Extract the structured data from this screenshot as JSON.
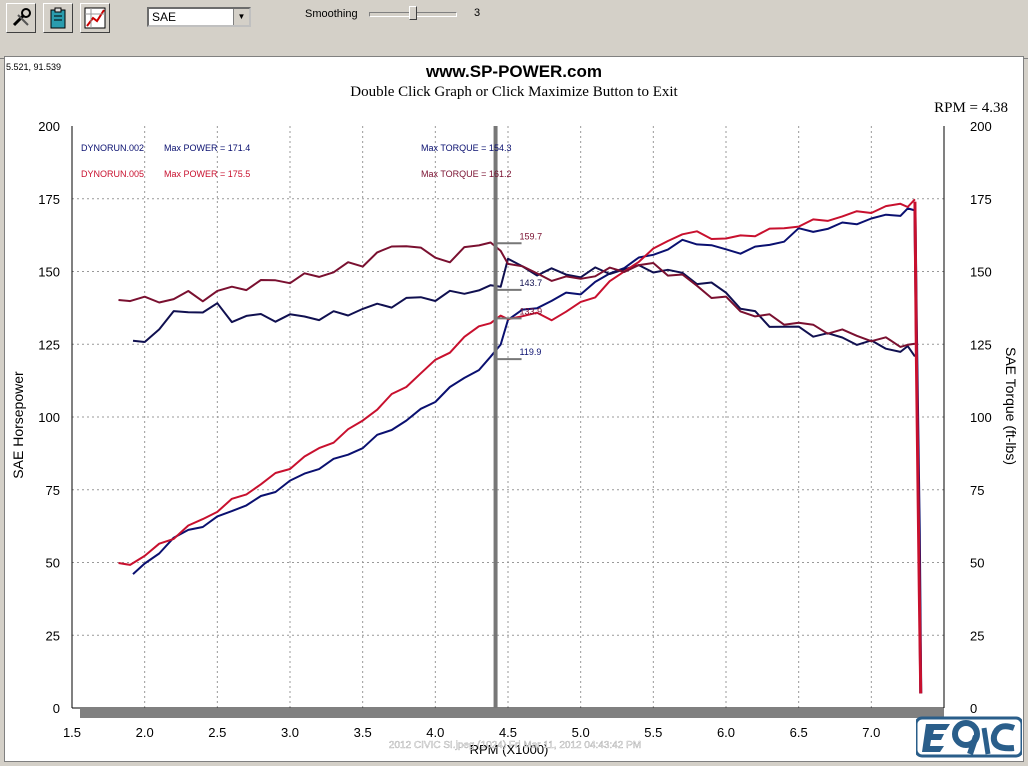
{
  "toolbar": {
    "tools": [
      {
        "name": "wrench-icon"
      },
      {
        "name": "clipboard-icon"
      },
      {
        "name": "graph-icon"
      }
    ],
    "correction_select": "SAE",
    "smoothing_label": "Smoothing",
    "smoothing_value": "3",
    "smoothing_level": 0.5
  },
  "coord_readout": "5.521, 91.539",
  "footer_caption": "2012 CIVIC SI.jpeg (1024) Fri Mar 11, 2012 04:43:42 PM",
  "colors": {
    "run1": "#0a1070",
    "run1_torque": "#101050",
    "run2": "#c8102e",
    "run2_torque": "#7a1030"
  },
  "chart_data": {
    "type": "line",
    "title": "www.SP-POWER.com",
    "subtitle": "Double Click Graph or Click Maximize Button to Exit",
    "rpm_readout": "RPM = 4.38",
    "xlabel": "RPM (X1000)",
    "ylabel": "SAE Horsepower",
    "y2label": "SAE Torque (ft-lbs)",
    "xlim": [
      1.5,
      7.5
    ],
    "ylim": [
      0,
      200
    ],
    "xticks": [
      "1.5",
      "2.0",
      "2.5",
      "3.0",
      "3.5",
      "4.0",
      "4.5",
      "5.0",
      "5.5",
      "6.0",
      "6.5",
      "7.0",
      "7.5"
    ],
    "yticks": [
      "0",
      "25",
      "50",
      "75",
      "100",
      "125",
      "150",
      "175",
      "200"
    ],
    "grid": true,
    "cursor_x": 4.38,
    "legend": [
      {
        "run": "DYNORUN.002",
        "power_text": "Max POWER = 171.4",
        "torque_text": "Max TORQUE = 154.3"
      },
      {
        "run": "DYNORUN.005",
        "power_text": "Max POWER = 175.5",
        "torque_text": "Max TORQUE = 161.2"
      }
    ],
    "cursor_labels": [
      {
        "text": "159.7",
        "value": 159.7
      },
      {
        "text": "143.7",
        "value": 143.7
      },
      {
        "text": "133.9",
        "value": 133.9
      },
      {
        "text": "119.9",
        "value": 119.9
      }
    ],
    "series": [
      {
        "name": "DYNORUN.002",
        "kind": "power",
        "x": [
          1.92,
          2.0,
          2.1,
          2.2,
          2.3,
          2.4,
          2.5,
          2.6,
          2.7,
          2.8,
          2.9,
          3.0,
          3.1,
          3.2,
          3.3,
          3.4,
          3.5,
          3.6,
          3.7,
          3.8,
          3.9,
          4.0,
          4.1,
          4.2,
          4.3,
          4.38,
          4.45,
          4.5,
          4.6,
          4.7,
          4.8,
          4.9,
          5.0,
          5.1,
          5.2,
          5.3,
          5.4,
          5.5,
          5.6,
          5.7,
          5.8,
          5.9,
          6.0,
          6.1,
          6.2,
          6.3,
          6.4,
          6.5,
          6.6,
          6.7,
          6.8,
          6.9,
          7.0,
          7.1,
          7.2,
          7.25,
          7.3
        ],
        "y": [
          46,
          49,
          54,
          58,
          61,
          63,
          65,
          68,
          70,
          72,
          75,
          78,
          80,
          83,
          85,
          87,
          90,
          93,
          96,
          99,
          102,
          106,
          110,
          113,
          117,
          120,
          125,
          134,
          136,
          138,
          140,
          142,
          143,
          146,
          149,
          152,
          154,
          156,
          158,
          160,
          160,
          159,
          157,
          157,
          158,
          159,
          161,
          164,
          164,
          165,
          166,
          167,
          168,
          169,
          170,
          171,
          171
        ]
      },
      {
        "name": "DYNORUN.002",
        "kind": "torque",
        "x": [
          1.92,
          2.0,
          2.1,
          2.2,
          2.3,
          2.4,
          2.5,
          2.6,
          2.7,
          2.8,
          2.9,
          3.0,
          3.1,
          3.2,
          3.3,
          3.4,
          3.5,
          3.6,
          3.7,
          3.8,
          3.9,
          4.0,
          4.1,
          4.2,
          4.3,
          4.38,
          4.45,
          4.5,
          4.6,
          4.7,
          4.8,
          4.9,
          5.0,
          5.1,
          5.2,
          5.3,
          5.4,
          5.5,
          5.6,
          5.7,
          5.8,
          5.9,
          6.0,
          6.1,
          6.2,
          6.3,
          6.4,
          6.5,
          6.6,
          6.7,
          6.8,
          6.9,
          7.0,
          7.1,
          7.2,
          7.25,
          7.3
        ],
        "y": [
          125,
          126,
          131,
          135,
          137,
          136,
          138,
          134,
          134,
          135,
          134,
          134,
          135,
          134,
          135,
          136,
          137,
          138,
          139,
          140,
          141,
          141,
          142,
          143,
          144,
          144,
          146,
          154,
          151,
          150,
          150,
          149,
          149,
          150,
          150,
          151,
          151,
          151,
          150,
          149,
          147,
          145,
          143,
          138,
          135,
          132,
          131,
          130,
          129,
          128,
          127,
          126,
          125,
          124,
          123,
          123,
          122
        ]
      },
      {
        "name": "DYNORUN.005",
        "kind": "power",
        "x": [
          1.82,
          1.9,
          2.0,
          2.1,
          2.2,
          2.3,
          2.4,
          2.5,
          2.6,
          2.7,
          2.8,
          2.9,
          3.0,
          3.1,
          3.2,
          3.3,
          3.4,
          3.5,
          3.6,
          3.7,
          3.8,
          3.9,
          4.0,
          4.1,
          4.2,
          4.3,
          4.38,
          4.45,
          4.5,
          4.6,
          4.7,
          4.8,
          4.9,
          5.0,
          5.1,
          5.2,
          5.3,
          5.4,
          5.5,
          5.6,
          5.7,
          5.8,
          5.9,
          6.0,
          6.1,
          6.2,
          6.3,
          6.4,
          6.5,
          6.6,
          6.7,
          6.8,
          6.9,
          7.0,
          7.1,
          7.2,
          7.25,
          7.3
        ],
        "y": [
          49,
          50,
          52,
          56,
          59,
          62,
          65,
          68,
          71,
          74,
          77,
          80,
          83,
          86,
          89,
          92,
          95,
          99,
          103,
          107,
          111,
          115,
          119,
          123,
          127,
          131,
          133,
          134,
          134,
          135,
          135,
          134,
          136,
          139,
          142,
          146,
          150,
          154,
          157,
          161,
          163,
          163,
          162,
          161,
          162,
          163,
          164,
          165,
          166,
          167,
          168,
          169,
          170,
          171,
          172,
          173,
          173,
          174
        ]
      },
      {
        "name": "DYNORUN.005",
        "kind": "torque",
        "x": [
          1.82,
          1.9,
          2.0,
          2.1,
          2.2,
          2.3,
          2.4,
          2.5,
          2.6,
          2.7,
          2.8,
          2.9,
          3.0,
          3.1,
          3.2,
          3.3,
          3.4,
          3.5,
          3.6,
          3.7,
          3.8,
          3.9,
          4.0,
          4.1,
          4.2,
          4.3,
          4.38,
          4.45,
          4.5,
          4.6,
          4.7,
          4.8,
          4.9,
          5.0,
          5.1,
          5.2,
          5.3,
          5.4,
          5.5,
          5.6,
          5.7,
          5.8,
          5.9,
          6.0,
          6.1,
          6.2,
          6.3,
          6.4,
          6.5,
          6.6,
          6.7,
          6.8,
          6.9,
          7.0,
          7.1,
          7.2,
          7.25,
          7.3
        ],
        "y": [
          140,
          141,
          140,
          140,
          141,
          142,
          141,
          143,
          144,
          145,
          146,
          147,
          147,
          148,
          149,
          150,
          152,
          153,
          156,
          158,
          160,
          157,
          155,
          154,
          157,
          160,
          160,
          156,
          154,
          151,
          149,
          148,
          147,
          148,
          149,
          150,
          151,
          152,
          152,
          150,
          148,
          145,
          142,
          140,
          137,
          135,
          134,
          133,
          132,
          131,
          130,
          129,
          128,
          127,
          126,
          125,
          125,
          124
        ]
      }
    ],
    "drop": {
      "x": [
        7.3,
        7.31,
        7.33,
        7.34
      ],
      "y_run1": [
        171,
        130,
        60,
        5
      ],
      "y_run2": [
        174,
        120,
        40,
        5
      ]
    }
  }
}
